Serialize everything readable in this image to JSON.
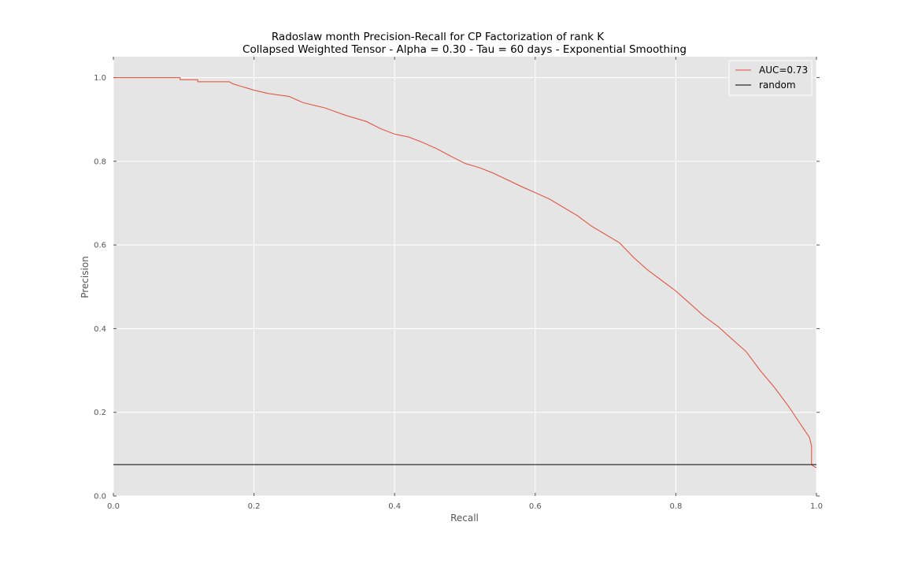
{
  "chart_data": {
    "type": "line",
    "title": "Radoslaw month Precision-Recall for CP Factorization of rank K",
    "subtitle": "Collapsed Weighted Tensor -  Alpha = 0.30 - Tau = 60 days - Exponential Smoothing",
    "xlabel": "Recall",
    "ylabel": "Precision",
    "xlim": [
      0.0,
      1.0
    ],
    "ylim": [
      0.0,
      1.05
    ],
    "xticks": [
      "0.0",
      "0.2",
      "0.4",
      "0.6",
      "0.8",
      "1.0"
    ],
    "yticks": [
      "0.0",
      "0.2",
      "0.4",
      "0.6",
      "0.8",
      "1.0"
    ],
    "grid": true,
    "background_color": "#e5e5e5",
    "legend_position": "top-right",
    "series": [
      {
        "name": "AUC=0.73",
        "color": "#e24a33",
        "x": [
          0.0,
          0.095,
          0.095,
          0.12,
          0.12,
          0.13,
          0.165,
          0.17,
          0.18,
          0.19,
          0.2,
          0.22,
          0.25,
          0.27,
          0.3,
          0.33,
          0.36,
          0.38,
          0.4,
          0.42,
          0.44,
          0.46,
          0.48,
          0.5,
          0.52,
          0.54,
          0.56,
          0.58,
          0.6,
          0.62,
          0.64,
          0.66,
          0.68,
          0.7,
          0.72,
          0.74,
          0.76,
          0.78,
          0.8,
          0.82,
          0.84,
          0.86,
          0.88,
          0.9,
          0.92,
          0.94,
          0.96,
          0.97,
          0.98,
          0.99,
          0.993,
          0.993,
          0.997,
          1.0
        ],
        "values": [
          1.0,
          1.0,
          0.995,
          0.995,
          0.99,
          0.99,
          0.99,
          0.985,
          0.98,
          0.975,
          0.97,
          0.962,
          0.955,
          0.94,
          0.928,
          0.91,
          0.895,
          0.878,
          0.865,
          0.858,
          0.845,
          0.83,
          0.812,
          0.795,
          0.785,
          0.772,
          0.756,
          0.74,
          0.725,
          0.71,
          0.69,
          0.67,
          0.645,
          0.625,
          0.605,
          0.57,
          0.54,
          0.515,
          0.49,
          0.46,
          0.43,
          0.405,
          0.375,
          0.345,
          0.3,
          0.26,
          0.215,
          0.19,
          0.165,
          0.14,
          0.12,
          0.075,
          0.07,
          0.068
        ]
      },
      {
        "name": "random",
        "color": "#000000",
        "x": [
          0.0,
          1.0
        ],
        "values": [
          0.075,
          0.075
        ]
      }
    ]
  }
}
